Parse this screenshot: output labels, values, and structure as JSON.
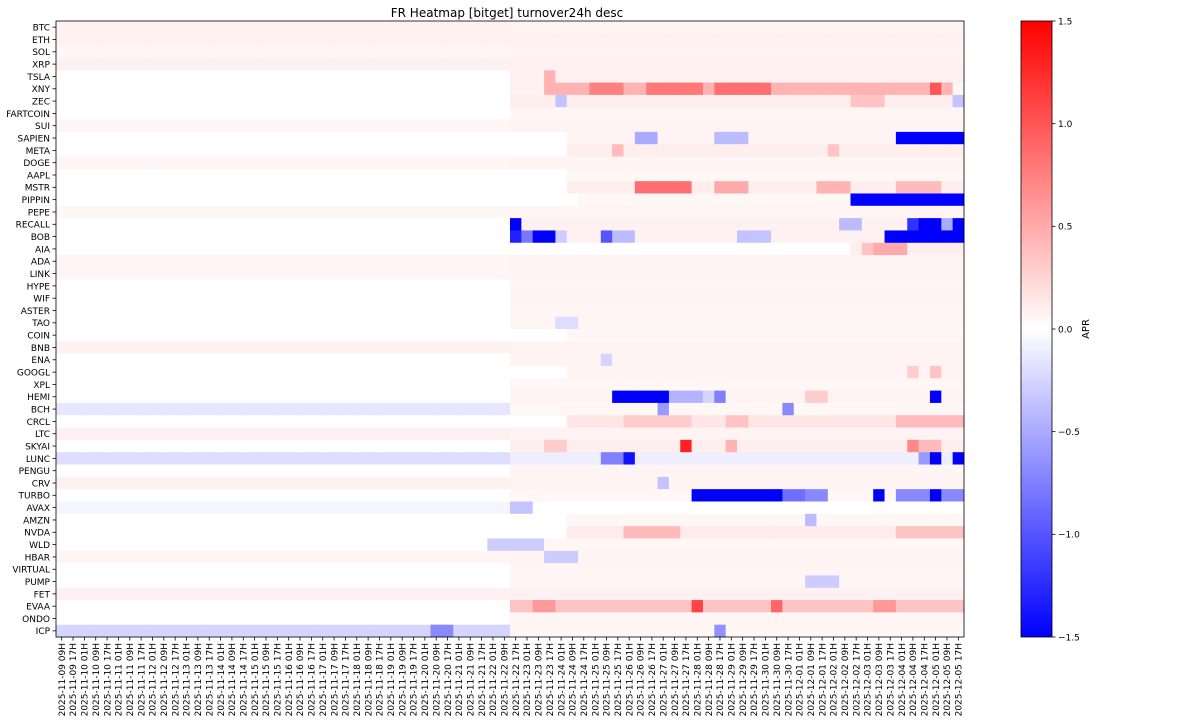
{
  "chart_data": {
    "type": "heatmap",
    "title": "FR Heatmap [bitget] turnover24h desc",
    "colorbar": {
      "label": "APR",
      "range": [
        -1.5,
        1.5
      ],
      "ticks": [
        {
          "value": 1.5,
          "label": "1.5"
        },
        {
          "value": 1.0,
          "label": "1.0"
        },
        {
          "value": 0.5,
          "label": "0.5"
        },
        {
          "value": 0.0,
          "label": "0.0"
        },
        {
          "value": -0.5,
          "label": "−0.5"
        },
        {
          "value": -1.0,
          "label": "−1.0"
        },
        {
          "value": -1.5,
          "label": "−1.5"
        }
      ],
      "colormap": "bwr"
    },
    "rows": [
      "BTC",
      "ETH",
      "SOL",
      "XRP",
      "TSLA",
      "XNY",
      "ZEC",
      "FARTCOIN",
      "SUI",
      "SAPIEN",
      "META",
      "DOGE",
      "AAPL",
      "MSTR",
      "PIPPIN",
      "PEPE",
      "RECALL",
      "BOB",
      "AIA",
      "ADA",
      "LINK",
      "HYPE",
      "WIF",
      "ASTER",
      "TAO",
      "COIN",
      "BNB",
      "ENA",
      "GOOGL",
      "XPL",
      "HEMI",
      "BCH",
      "CRCL",
      "LTC",
      "SKYAI",
      "LUNC",
      "PENGU",
      "CRV",
      "TURBO",
      "AVAX",
      "AMZN",
      "NVDA",
      "WLD",
      "HBAR",
      "VIRTUAL",
      "PUMP",
      "FET",
      "EVAA",
      "ONDO",
      "ICP"
    ],
    "x_start": "2025-11-09 09H",
    "x_end": "2025-12-05 17H",
    "x_step_hours": 8,
    "x_tick_labels": [
      "2025-11-09 09H",
      "2025-11-09 17H",
      "2025-11-10 01H",
      "2025-11-10 09H",
      "2025-11-10 17H",
      "2025-11-11 01H",
      "2025-11-11 09H",
      "2025-11-11 17H",
      "2025-11-12 01H",
      "2025-11-12 09H",
      "2025-11-12 17H",
      "2025-11-13 01H",
      "2025-11-13 09H",
      "2025-11-13 17H",
      "2025-11-14 01H",
      "2025-11-14 09H",
      "2025-11-14 17H",
      "2025-11-15 01H",
      "2025-11-15 09H",
      "2025-11-15 17H",
      "2025-11-16 01H",
      "2025-11-16 09H",
      "2025-11-16 17H",
      "2025-11-17 01H",
      "2025-11-17 09H",
      "2025-11-17 17H",
      "2025-11-18 01H",
      "2025-11-18 09H",
      "2025-11-18 17H",
      "2025-11-19 01H",
      "2025-11-19 09H",
      "2025-11-19 17H",
      "2025-11-20 01H",
      "2025-11-20 09H",
      "2025-11-20 17H",
      "2025-11-21 01H",
      "2025-11-21 09H",
      "2025-11-21 17H",
      "2025-11-22 01H",
      "2025-11-22 09H",
      "2025-11-22 17H",
      "2025-11-23 01H",
      "2025-11-23 09H",
      "2025-11-23 17H",
      "2025-11-24 01H",
      "2025-11-24 09H",
      "2025-11-24 17H",
      "2025-11-25 01H",
      "2025-11-25 09H",
      "2025-11-25 17H",
      "2025-11-26 01H",
      "2025-11-26 09H",
      "2025-11-26 17H",
      "2025-11-27 01H",
      "2025-11-27 09H",
      "2025-11-27 17H",
      "2025-11-28 01H",
      "2025-11-28 09H",
      "2025-11-28 17H",
      "2025-11-29 01H",
      "2025-11-29 09H",
      "2025-11-29 17H",
      "2025-11-30 01H",
      "2025-11-30 09H",
      "2025-11-30 17H",
      "2025-12-01 01H",
      "2025-12-01 09H",
      "2025-12-01 17H",
      "2025-12-02 01H",
      "2025-12-02 09H",
      "2025-12-02 17H",
      "2025-12-03 01H",
      "2025-12-03 09H",
      "2025-12-03 17H",
      "2025-12-04 01H",
      "2025-12-04 09H",
      "2025-12-04 17H",
      "2025-12-05 01H",
      "2025-12-05 09H",
      "2025-12-05 17H"
    ],
    "default_value": 0.08,
    "row_baselines": {
      "BTC": 0.08,
      "ETH": 0.08,
      "SOL": 0.05,
      "XRP": 0.08,
      "TSLA": 0.0,
      "XNY": 0.0,
      "ZEC": 0.0,
      "FARTCOIN": 0.0,
      "SUI": 0.06,
      "SAPIEN": 0.0,
      "META": 0.0,
      "DOGE": 0.06,
      "AAPL": 0.0,
      "MSTR": 0.0,
      "PIPPIN": 0.0,
      "PEPE": 0.05,
      "RECALL": 0.0,
      "BOB": 0.0,
      "AIA": 0.0,
      "ADA": 0.06,
      "LINK": 0.06,
      "HYPE": 0.0,
      "WIF": 0.0,
      "ASTER": 0.0,
      "TAO": 0.0,
      "COIN": 0.0,
      "BNB": 0.08,
      "ENA": 0.0,
      "GOOGL": 0.0,
      "XPL": 0.0,
      "HEMI": 0.0,
      "BCH": -0.15,
      "CRCL": 0.0,
      "LTC": 0.08,
      "SKYAI": 0.0,
      "LUNC": -0.2,
      "PENGU": 0.0,
      "CRV": 0.08,
      "TURBO": 0.0,
      "AVAX": -0.06,
      "AMZN": 0.0,
      "NVDA": 0.0,
      "WLD": 0.0,
      "HBAR": 0.06,
      "VIRTUAL": 0.0,
      "PUMP": 0.0,
      "FET": 0.08,
      "EVAA": 0.0,
      "ONDO": 0.0,
      "ICP": -0.25
    },
    "row_segments": [
      {
        "row": "BTC",
        "from": 40,
        "to": 79,
        "value": 0.07
      },
      {
        "row": "ETH",
        "from": 40,
        "to": 79,
        "value": 0.08
      },
      {
        "row": "SOL",
        "from": 40,
        "to": 79,
        "value": 0.07
      },
      {
        "row": "XRP",
        "from": 40,
        "to": 79,
        "value": 0.08
      },
      {
        "row": "TSLA",
        "from": 40,
        "to": 79,
        "value": 0.08
      },
      {
        "row": "TSLA",
        "from": 43,
        "to": 43,
        "value": 0.45
      },
      {
        "row": "XNY",
        "from": 40,
        "to": 79,
        "value": 0.08
      },
      {
        "row": "XNY",
        "from": 43,
        "to": 79,
        "value": 0.45
      },
      {
        "row": "XNY",
        "from": 47,
        "to": 49,
        "value": 0.75
      },
      {
        "row": "XNY",
        "from": 52,
        "to": 56,
        "value": 0.8
      },
      {
        "row": "XNY",
        "from": 58,
        "to": 62,
        "value": 0.85
      },
      {
        "row": "XNY",
        "from": 77,
        "to": 77,
        "value": 1.0
      },
      {
        "row": "XNY",
        "from": 79,
        "to": 79,
        "value": 0.05
      },
      {
        "row": "ZEC",
        "from": 40,
        "to": 79,
        "value": 0.1
      },
      {
        "row": "ZEC",
        "from": 44,
        "to": 44,
        "value": -0.35
      },
      {
        "row": "ZEC",
        "from": 70,
        "to": 72,
        "value": 0.35
      },
      {
        "row": "ZEC",
        "from": 79,
        "to": 79,
        "value": -0.35
      },
      {
        "row": "FARTCOIN",
        "from": 40,
        "to": 79,
        "value": 0.06
      },
      {
        "row": "SUI",
        "from": 40,
        "to": 79,
        "value": 0.07
      },
      {
        "row": "SAPIEN",
        "from": 45,
        "to": 79,
        "value": 0.07
      },
      {
        "row": "SAPIEN",
        "from": 51,
        "to": 52,
        "value": -0.5
      },
      {
        "row": "SAPIEN",
        "from": 58,
        "to": 60,
        "value": -0.4
      },
      {
        "row": "SAPIEN",
        "from": 74,
        "to": 79,
        "value": -1.5
      },
      {
        "row": "META",
        "from": 45,
        "to": 79,
        "value": 0.1
      },
      {
        "row": "META",
        "from": 49,
        "to": 49,
        "value": 0.4
      },
      {
        "row": "META",
        "from": 68,
        "to": 68,
        "value": 0.35
      },
      {
        "row": "DOGE",
        "from": 40,
        "to": 79,
        "value": 0.07
      },
      {
        "row": "AAPL",
        "from": 45,
        "to": 79,
        "value": 0.05
      },
      {
        "row": "MSTR",
        "from": 45,
        "to": 79,
        "value": 0.1
      },
      {
        "row": "MSTR",
        "from": 51,
        "to": 55,
        "value": 0.85
      },
      {
        "row": "MSTR",
        "from": 58,
        "to": 60,
        "value": 0.5
      },
      {
        "row": "MSTR",
        "from": 67,
        "to": 69,
        "value": 0.45
      },
      {
        "row": "MSTR",
        "from": 74,
        "to": 77,
        "value": 0.4
      },
      {
        "row": "PIPPIN",
        "from": 46,
        "to": 69,
        "value": 0.05
      },
      {
        "row": "PIPPIN",
        "from": 70,
        "to": 79,
        "value": -1.5
      },
      {
        "row": "PEPE",
        "from": 40,
        "to": 79,
        "value": 0.06
      },
      {
        "row": "RECALL",
        "from": 40,
        "to": 79,
        "value": 0.08
      },
      {
        "row": "RECALL",
        "from": 40,
        "to": 40,
        "value": -1.5
      },
      {
        "row": "RECALL",
        "from": 69,
        "to": 70,
        "value": -0.4
      },
      {
        "row": "RECALL",
        "from": 75,
        "to": 75,
        "value": -1.2
      },
      {
        "row": "RECALL",
        "from": 76,
        "to": 77,
        "value": -1.5
      },
      {
        "row": "RECALL",
        "from": 78,
        "to": 78,
        "value": -0.5
      },
      {
        "row": "RECALL",
        "from": 79,
        "to": 79,
        "value": -1.5
      },
      {
        "row": "BOB",
        "from": 40,
        "to": 79,
        "value": 0.08
      },
      {
        "row": "BOB",
        "from": 40,
        "to": 40,
        "value": -1.3
      },
      {
        "row": "BOB",
        "from": 41,
        "to": 41,
        "value": -0.8
      },
      {
        "row": "BOB",
        "from": 42,
        "to": 43,
        "value": -1.5
      },
      {
        "row": "BOB",
        "from": 44,
        "to": 44,
        "value": -0.3
      },
      {
        "row": "BOB",
        "from": 48,
        "to": 48,
        "value": -1.0
      },
      {
        "row": "BOB",
        "from": 49,
        "to": 50,
        "value": -0.4
      },
      {
        "row": "BOB",
        "from": 60,
        "to": 62,
        "value": -0.35
      },
      {
        "row": "BOB",
        "from": 73,
        "to": 79,
        "value": -1.5
      },
      {
        "row": "AIA",
        "from": 70,
        "to": 79,
        "value": 0.1
      },
      {
        "row": "AIA",
        "from": 71,
        "to": 71,
        "value": 0.35
      },
      {
        "row": "AIA",
        "from": 72,
        "to": 74,
        "value": 0.5
      },
      {
        "row": "ADA",
        "from": 40,
        "to": 79,
        "value": 0.07
      },
      {
        "row": "LINK",
        "from": 40,
        "to": 79,
        "value": 0.07
      },
      {
        "row": "HYPE",
        "from": 40,
        "to": 79,
        "value": 0.06
      },
      {
        "row": "WIF",
        "from": 40,
        "to": 79,
        "value": 0.07
      },
      {
        "row": "ASTER",
        "from": 40,
        "to": 79,
        "value": 0.06
      },
      {
        "row": "TAO",
        "from": 40,
        "to": 79,
        "value": 0.06
      },
      {
        "row": "TAO",
        "from": 44,
        "to": 45,
        "value": -0.2
      },
      {
        "row": "COIN",
        "from": 45,
        "to": 79,
        "value": 0.05
      },
      {
        "row": "BNB",
        "from": 40,
        "to": 79,
        "value": 0.07
      },
      {
        "row": "ENA",
        "from": 40,
        "to": 79,
        "value": 0.07
      },
      {
        "row": "ENA",
        "from": 48,
        "to": 48,
        "value": -0.25
      },
      {
        "row": "GOOGL",
        "from": 45,
        "to": 79,
        "value": 0.07
      },
      {
        "row": "GOOGL",
        "from": 75,
        "to": 75,
        "value": 0.3
      },
      {
        "row": "GOOGL",
        "from": 77,
        "to": 77,
        "value": 0.35
      },
      {
        "row": "XPL",
        "from": 40,
        "to": 79,
        "value": 0.05
      },
      {
        "row": "HEMI",
        "from": 40,
        "to": 79,
        "value": 0.07
      },
      {
        "row": "HEMI",
        "from": 49,
        "to": 53,
        "value": -1.5
      },
      {
        "row": "HEMI",
        "from": 54,
        "to": 56,
        "value": -0.45
      },
      {
        "row": "HEMI",
        "from": 57,
        "to": 57,
        "value": -0.25
      },
      {
        "row": "HEMI",
        "from": 58,
        "to": 58,
        "value": -0.75
      },
      {
        "row": "HEMI",
        "from": 66,
        "to": 67,
        "value": 0.3
      },
      {
        "row": "HEMI",
        "from": 77,
        "to": 77,
        "value": -1.5
      },
      {
        "row": "BCH",
        "from": 40,
        "to": 79,
        "value": 0.05
      },
      {
        "row": "BCH",
        "from": 53,
        "to": 53,
        "value": -0.6
      },
      {
        "row": "BCH",
        "from": 64,
        "to": 64,
        "value": -0.7
      },
      {
        "row": "CRCL",
        "from": 45,
        "to": 79,
        "value": 0.15
      },
      {
        "row": "CRCL",
        "from": 50,
        "to": 55,
        "value": 0.3
      },
      {
        "row": "CRCL",
        "from": 59,
        "to": 60,
        "value": 0.35
      },
      {
        "row": "CRCL",
        "from": 74,
        "to": 79,
        "value": 0.4
      },
      {
        "row": "LTC",
        "from": 40,
        "to": 79,
        "value": 0.07
      },
      {
        "row": "SKYAI",
        "from": 40,
        "to": 79,
        "value": 0.1
      },
      {
        "row": "SKYAI",
        "from": 43,
        "to": 44,
        "value": 0.3
      },
      {
        "row": "SKYAI",
        "from": 55,
        "to": 55,
        "value": 1.3
      },
      {
        "row": "SKYAI",
        "from": 59,
        "to": 59,
        "value": 0.45
      },
      {
        "row": "SKYAI",
        "from": 75,
        "to": 75,
        "value": 0.7
      },
      {
        "row": "SKYAI",
        "from": 76,
        "to": 77,
        "value": 0.4
      },
      {
        "row": "LUNC",
        "from": 40,
        "to": 79,
        "value": -0.1
      },
      {
        "row": "LUNC",
        "from": 48,
        "to": 49,
        "value": -0.75
      },
      {
        "row": "LUNC",
        "from": 50,
        "to": 50,
        "value": -1.4
      },
      {
        "row": "LUNC",
        "from": 76,
        "to": 76,
        "value": -0.6
      },
      {
        "row": "LUNC",
        "from": 77,
        "to": 77,
        "value": -1.5
      },
      {
        "row": "LUNC",
        "from": 79,
        "to": 79,
        "value": -1.5
      },
      {
        "row": "PENGU",
        "from": 40,
        "to": 79,
        "value": 0.06
      },
      {
        "row": "CRV",
        "from": 40,
        "to": 79,
        "value": 0.07
      },
      {
        "row": "CRV",
        "from": 53,
        "to": 53,
        "value": -0.35
      },
      {
        "row": "TURBO",
        "from": 40,
        "to": 79,
        "value": 0.05
      },
      {
        "row": "TURBO",
        "from": 56,
        "to": 63,
        "value": -1.5
      },
      {
        "row": "TURBO",
        "from": 64,
        "to": 65,
        "value": -0.85
      },
      {
        "row": "TURBO",
        "from": 66,
        "to": 67,
        "value": -0.7
      },
      {
        "row": "TURBO",
        "from": 72,
        "to": 72,
        "value": -1.5
      },
      {
        "row": "TURBO",
        "from": 74,
        "to": 76,
        "value": -0.7
      },
      {
        "row": "TURBO",
        "from": 77,
        "to": 77,
        "value": -1.5
      },
      {
        "row": "TURBO",
        "from": 78,
        "to": 79,
        "value": -0.7
      },
      {
        "row": "AVAX",
        "from": 40,
        "to": 79,
        "value": 0.0
      },
      {
        "row": "AVAX",
        "from": 40,
        "to": 41,
        "value": -0.35
      },
      {
        "row": "AMZN",
        "from": 45,
        "to": 79,
        "value": 0.05
      },
      {
        "row": "AMZN",
        "from": 66,
        "to": 66,
        "value": -0.4
      },
      {
        "row": "NVDA",
        "from": 45,
        "to": 79,
        "value": 0.12
      },
      {
        "row": "NVDA",
        "from": 50,
        "to": 54,
        "value": 0.4
      },
      {
        "row": "NVDA",
        "from": 74,
        "to": 79,
        "value": 0.35
      },
      {
        "row": "WLD",
        "from": 38,
        "to": 79,
        "value": 0.05
      },
      {
        "row": "WLD",
        "from": 38,
        "to": 42,
        "value": -0.3
      },
      {
        "row": "HBAR",
        "from": 40,
        "to": 79,
        "value": 0.07
      },
      {
        "row": "HBAR",
        "from": 43,
        "to": 45,
        "value": -0.3
      },
      {
        "row": "VIRTUAL",
        "from": 40,
        "to": 79,
        "value": 0.06
      },
      {
        "row": "PUMP",
        "from": 40,
        "to": 79,
        "value": 0.06
      },
      {
        "row": "PUMP",
        "from": 66,
        "to": 68,
        "value": -0.3
      },
      {
        "row": "FET",
        "from": 40,
        "to": 79,
        "value": 0.08
      },
      {
        "row": "EVAA",
        "from": 40,
        "to": 79,
        "value": 0.35
      },
      {
        "row": "EVAA",
        "from": 42,
        "to": 43,
        "value": 0.6
      },
      {
        "row": "EVAA",
        "from": 56,
        "to": 56,
        "value": 1.1
      },
      {
        "row": "EVAA",
        "from": 63,
        "to": 63,
        "value": 0.9
      },
      {
        "row": "EVAA",
        "from": 72,
        "to": 73,
        "value": 0.6
      },
      {
        "row": "ONDO",
        "from": 40,
        "to": 79,
        "value": 0.06
      },
      {
        "row": "ICP",
        "from": 40,
        "to": 79,
        "value": 0.05
      },
      {
        "row": "ICP",
        "from": 33,
        "to": 34,
        "value": -0.7
      },
      {
        "row": "ICP",
        "from": 58,
        "to": 58,
        "value": -0.65
      }
    ]
  }
}
